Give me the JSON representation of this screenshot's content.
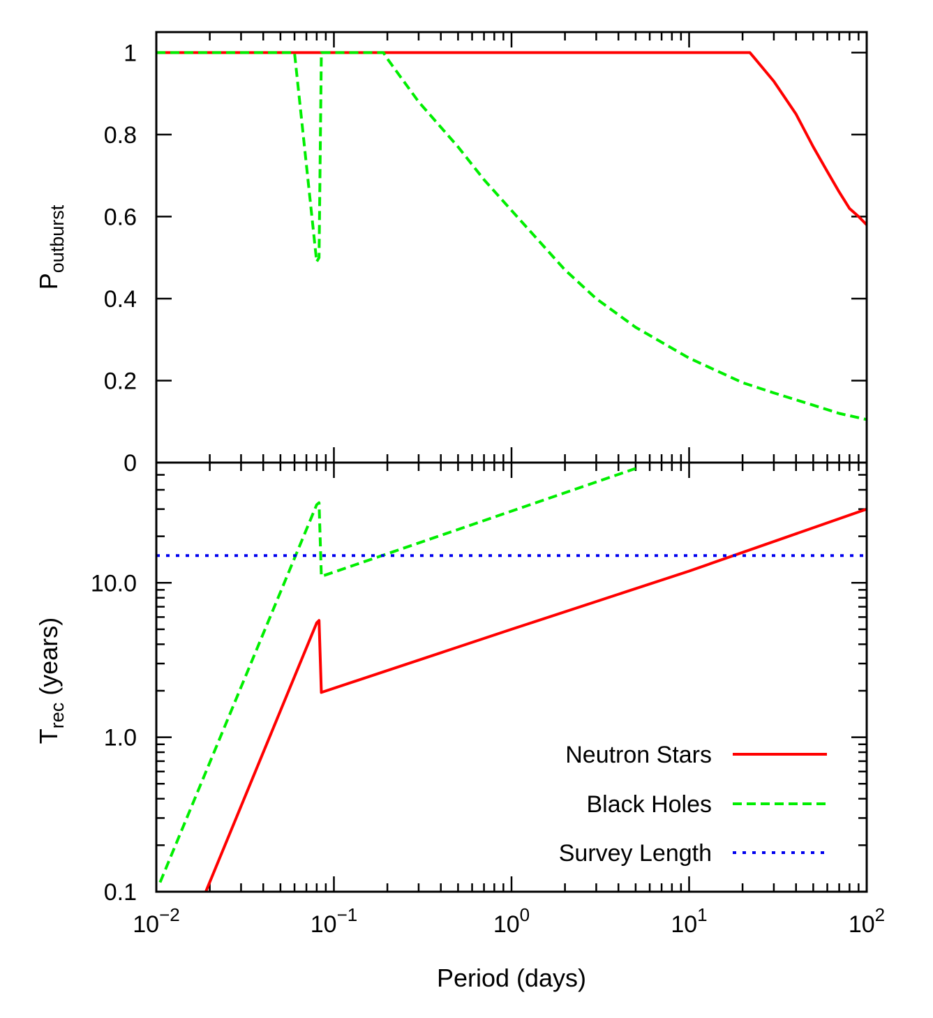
{
  "chart_data": [
    {
      "type": "line",
      "xscale": "log",
      "xlim": [
        0.01,
        100
      ],
      "ylim": [
        0,
        1.05
      ],
      "ylabel": {
        "main": "P",
        "sub": "outburst"
      },
      "yticks": [
        0,
        0.2,
        0.4,
        0.6,
        0.8,
        1
      ],
      "ytick_labels": [
        "0",
        "0.2",
        "0.4",
        "0.6",
        "0.8",
        "1"
      ],
      "series": [
        {
          "id": "ns-top",
          "color": "#ff0000",
          "dash": "solid",
          "points": [
            [
              0.01,
              1
            ],
            [
              22,
              1
            ],
            [
              23,
              0.99
            ],
            [
              30,
              0.93
            ],
            [
              40,
              0.85
            ],
            [
              50,
              0.77
            ],
            [
              60,
              0.71
            ],
            [
              70,
              0.66
            ],
            [
              80,
              0.62
            ],
            [
              90,
              0.6
            ],
            [
              100,
              0.58
            ]
          ]
        },
        {
          "id": "bh-top",
          "color": "#00ee00",
          "dash": "dashed",
          "points": [
            [
              0.01,
              1
            ],
            [
              0.06,
              1
            ],
            [
              0.08,
              0.49
            ],
            [
              0.0825,
              0.5
            ],
            [
              0.085,
              1
            ],
            [
              0.19,
              1
            ],
            [
              0.2,
              0.985
            ],
            [
              0.3,
              0.88
            ],
            [
              0.5,
              0.77
            ],
            [
              0.7,
              0.69
            ],
            [
              1,
              0.615
            ],
            [
              2,
              0.47
            ],
            [
              3,
              0.4
            ],
            [
              5,
              0.33
            ],
            [
              10,
              0.255
            ],
            [
              20,
              0.195
            ],
            [
              30,
              0.17
            ],
            [
              50,
              0.14
            ],
            [
              70,
              0.12
            ],
            [
              100,
              0.105
            ]
          ]
        }
      ]
    },
    {
      "type": "line",
      "xscale": "log",
      "yscale": "log",
      "xlim": [
        0.01,
        100
      ],
      "ylim": [
        0.1,
        60
      ],
      "xlabel": "Period (days)",
      "ylabel": {
        "main": "T",
        "sub": "rec",
        "rest": " (years)"
      },
      "xticks": [
        0.01,
        0.1,
        1,
        10,
        100
      ],
      "xtick_labels": [
        {
          "base": "10",
          "exp": "−2"
        },
        {
          "base": "10",
          "exp": "−1"
        },
        {
          "base": "10",
          "exp": "0"
        },
        {
          "base": "10",
          "exp": "1"
        },
        {
          "base": "10",
          "exp": "2"
        }
      ],
      "yticks": [
        0.1,
        1,
        10
      ],
      "ytick_labels": [
        "0.1",
        "1.0",
        "10.0"
      ],
      "series": [
        {
          "id": "ns",
          "name": "Neutron Stars",
          "color": "#ff0000",
          "dash": "solid",
          "points": [
            [
              0.019,
              0.1
            ],
            [
              0.08,
              5.5
            ],
            [
              0.0825,
              5.7
            ],
            [
              0.085,
              1.95
            ],
            [
              1,
              5
            ],
            [
              10,
              11.9
            ],
            [
              100,
              30
            ]
          ]
        },
        {
          "id": "bh",
          "name": "Black Holes",
          "color": "#00ee00",
          "dash": "dashed",
          "points": [
            [
              0.0105,
              0.115
            ],
            [
              0.08,
              32
            ],
            [
              0.0825,
              33
            ],
            [
              0.085,
              11
            ],
            [
              5,
              55
            ]
          ]
        },
        {
          "id": "survey",
          "name": "Survey Length",
          "color": "#0000ee",
          "dash": "dotted",
          "points": [
            [
              0.01,
              15
            ],
            [
              100,
              15
            ]
          ]
        }
      ],
      "legend": {
        "position": "bottom-right",
        "entries": [
          "Neutron Stars",
          "Black Holes",
          "Survey Length"
        ]
      }
    }
  ]
}
